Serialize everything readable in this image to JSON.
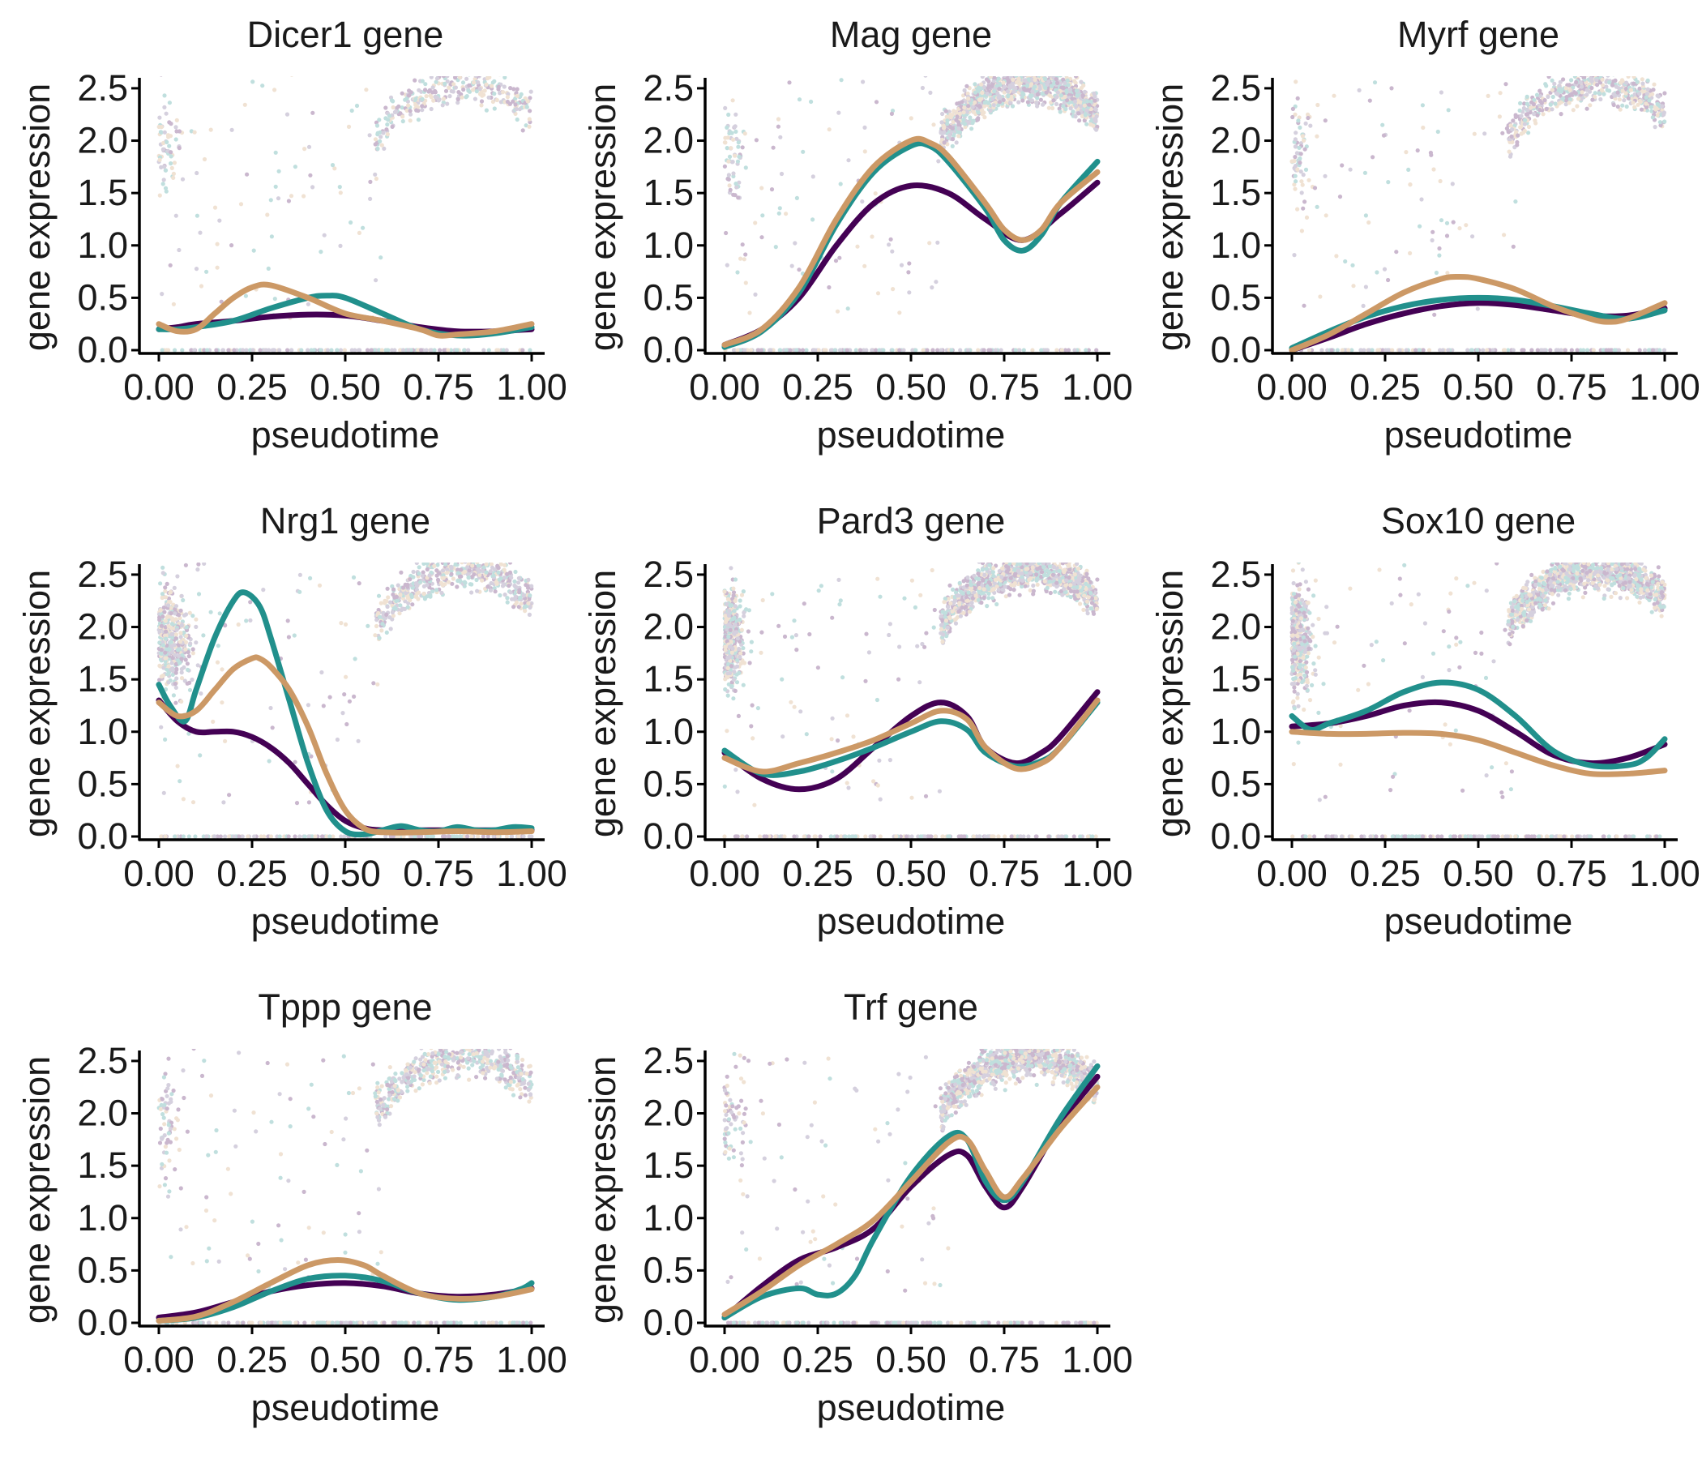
{
  "chart_data": {
    "type": "line",
    "colors": {
      "series": [
        "#440154",
        "#21908C",
        "#CC9966"
      ],
      "points": [
        "#440154",
        "#21908C",
        "#CC9966",
        "#6b5b8a"
      ]
    },
    "xlabel": "pseudotime",
    "ylabel": "gene expression",
    "xlim": [
      0,
      1
    ],
    "ylim": [
      0,
      2.6
    ],
    "xticks": [
      "0.00",
      "0.25",
      "0.50",
      "0.75",
      "1.00"
    ],
    "yticks": [
      "0.0",
      "0.5",
      "1.0",
      "1.5",
      "2.0",
      "2.5"
    ],
    "grid": false,
    "legend": "none",
    "panels": [
      {
        "title": "Dicer1 gene",
        "points_shape": "early",
        "series": [
          {
            "color": "#440154",
            "x": [
              0,
              0.05,
              0.1,
              0.2,
              0.3,
              0.4,
              0.5,
              0.6,
              0.7,
              0.8,
              0.9,
              1.0
            ],
            "y": [
              0.2,
              0.22,
              0.25,
              0.28,
              0.32,
              0.34,
              0.33,
              0.28,
              0.22,
              0.18,
              0.18,
              0.2
            ]
          },
          {
            "color": "#21908C",
            "x": [
              0,
              0.05,
              0.1,
              0.2,
              0.3,
              0.4,
              0.45,
              0.5,
              0.6,
              0.7,
              0.8,
              0.9,
              1.0
            ],
            "y": [
              0.2,
              0.2,
              0.22,
              0.28,
              0.4,
              0.5,
              0.52,
              0.5,
              0.35,
              0.2,
              0.14,
              0.16,
              0.22
            ]
          },
          {
            "color": "#CC9966",
            "x": [
              0,
              0.05,
              0.1,
              0.15,
              0.2,
              0.25,
              0.3,
              0.4,
              0.5,
              0.6,
              0.7,
              0.75,
              0.8,
              0.9,
              1.0
            ],
            "y": [
              0.25,
              0.18,
              0.2,
              0.35,
              0.5,
              0.6,
              0.62,
              0.5,
              0.35,
              0.28,
              0.2,
              0.14,
              0.15,
              0.18,
              0.25
            ]
          }
        ]
      },
      {
        "title": "Mag gene",
        "points_shape": "dense",
        "series": [
          {
            "color": "#440154",
            "x": [
              0,
              0.1,
              0.2,
              0.3,
              0.4,
              0.5,
              0.6,
              0.7,
              0.8,
              0.9,
              1.0
            ],
            "y": [
              0.05,
              0.2,
              0.5,
              1.0,
              1.4,
              1.57,
              1.5,
              1.25,
              1.05,
              1.3,
              1.6
            ]
          },
          {
            "color": "#21908C",
            "x": [
              0,
              0.1,
              0.2,
              0.3,
              0.4,
              0.5,
              0.55,
              0.6,
              0.7,
              0.75,
              0.8,
              0.85,
              0.9,
              1.0
            ],
            "y": [
              0.03,
              0.18,
              0.55,
              1.2,
              1.7,
              1.95,
              1.95,
              1.8,
              1.35,
              1.05,
              0.95,
              1.1,
              1.4,
              1.8
            ]
          },
          {
            "color": "#CC9966",
            "x": [
              0,
              0.1,
              0.2,
              0.3,
              0.4,
              0.5,
              0.55,
              0.6,
              0.7,
              0.75,
              0.8,
              0.85,
              0.9,
              1.0
            ],
            "y": [
              0.05,
              0.2,
              0.6,
              1.25,
              1.75,
              2.0,
              1.98,
              1.85,
              1.4,
              1.15,
              1.05,
              1.15,
              1.4,
              1.7
            ]
          }
        ]
      },
      {
        "title": "Myrf gene",
        "points_shape": "late",
        "series": [
          {
            "color": "#440154",
            "x": [
              0,
              0.1,
              0.2,
              0.3,
              0.4,
              0.5,
              0.6,
              0.7,
              0.8,
              0.9,
              1.0
            ],
            "y": [
              0,
              0.12,
              0.25,
              0.35,
              0.42,
              0.45,
              0.43,
              0.38,
              0.33,
              0.33,
              0.4
            ]
          },
          {
            "color": "#21908C",
            "x": [
              0,
              0.1,
              0.2,
              0.3,
              0.4,
              0.5,
              0.6,
              0.7,
              0.8,
              0.9,
              1.0
            ],
            "y": [
              0.02,
              0.18,
              0.32,
              0.42,
              0.48,
              0.5,
              0.48,
              0.42,
              0.35,
              0.3,
              0.38
            ]
          },
          {
            "color": "#CC9966",
            "x": [
              0,
              0.1,
              0.2,
              0.3,
              0.4,
              0.45,
              0.5,
              0.6,
              0.7,
              0.8,
              0.85,
              0.9,
              1.0
            ],
            "y": [
              0,
              0.15,
              0.35,
              0.55,
              0.68,
              0.7,
              0.68,
              0.58,
              0.42,
              0.3,
              0.27,
              0.3,
              0.45
            ]
          }
        ]
      },
      {
        "title": "Nrg1 gene",
        "points_shape": "both",
        "series": [
          {
            "color": "#440154",
            "x": [
              0,
              0.05,
              0.1,
              0.15,
              0.2,
              0.25,
              0.3,
              0.35,
              0.4,
              0.45,
              0.5,
              0.55,
              0.6,
              0.7,
              0.8,
              0.9,
              1.0
            ],
            "y": [
              1.3,
              1.1,
              1.0,
              1.0,
              1.0,
              0.95,
              0.85,
              0.7,
              0.5,
              0.3,
              0.15,
              0.08,
              0.06,
              0.06,
              0.06,
              0.06,
              0.06
            ]
          },
          {
            "color": "#21908C",
            "x": [
              0,
              0.03,
              0.07,
              0.1,
              0.15,
              0.2,
              0.23,
              0.27,
              0.3,
              0.35,
              0.4,
              0.45,
              0.5,
              0.55,
              0.6,
              0.65,
              0.7,
              0.75,
              0.8,
              0.85,
              0.9,
              0.95,
              1.0
            ],
            "y": [
              1.45,
              1.25,
              1.1,
              1.4,
              1.9,
              2.25,
              2.33,
              2.2,
              1.9,
              1.3,
              0.7,
              0.25,
              0.05,
              0.02,
              0.06,
              0.1,
              0.06,
              0.05,
              0.09,
              0.06,
              0.06,
              0.09,
              0.08
            ]
          },
          {
            "color": "#CC9966",
            "x": [
              0,
              0.05,
              0.1,
              0.15,
              0.2,
              0.25,
              0.27,
              0.3,
              0.35,
              0.4,
              0.45,
              0.5,
              0.55,
              0.6,
              0.7,
              0.8,
              0.9,
              1.0
            ],
            "y": [
              1.28,
              1.15,
              1.2,
              1.4,
              1.6,
              1.7,
              1.7,
              1.62,
              1.4,
              1.05,
              0.6,
              0.25,
              0.08,
              0.04,
              0.04,
              0.05,
              0.04,
              0.05
            ]
          }
        ]
      },
      {
        "title": "Pard3 gene",
        "points_shape": "both-dense",
        "series": [
          {
            "color": "#440154",
            "x": [
              0,
              0.1,
              0.2,
              0.3,
              0.4,
              0.5,
              0.58,
              0.65,
              0.7,
              0.78,
              0.85,
              0.9,
              1.0
            ],
            "y": [
              0.8,
              0.55,
              0.45,
              0.55,
              0.85,
              1.15,
              1.28,
              1.15,
              0.85,
              0.7,
              0.8,
              0.95,
              1.38
            ]
          },
          {
            "color": "#21908C",
            "x": [
              0,
              0.1,
              0.2,
              0.3,
              0.4,
              0.5,
              0.58,
              0.65,
              0.7,
              0.78,
              0.85,
              0.9,
              1.0
            ],
            "y": [
              0.82,
              0.6,
              0.62,
              0.72,
              0.85,
              1.0,
              1.1,
              1.02,
              0.8,
              0.67,
              0.72,
              0.85,
              1.28
            ]
          },
          {
            "color": "#CC9966",
            "x": [
              0,
              0.1,
              0.2,
              0.3,
              0.4,
              0.5,
              0.58,
              0.65,
              0.7,
              0.78,
              0.85,
              0.9,
              1.0
            ],
            "y": [
              0.75,
              0.62,
              0.7,
              0.8,
              0.92,
              1.08,
              1.2,
              1.12,
              0.85,
              0.65,
              0.7,
              0.85,
              1.3
            ]
          }
        ]
      },
      {
        "title": "Sox10 gene",
        "points_shape": "both-dense",
        "series": [
          {
            "color": "#440154",
            "x": [
              0,
              0.1,
              0.2,
              0.3,
              0.4,
              0.5,
              0.6,
              0.7,
              0.8,
              0.9,
              1.0
            ],
            "y": [
              1.05,
              1.08,
              1.15,
              1.25,
              1.28,
              1.2,
              1.0,
              0.78,
              0.7,
              0.75,
              0.88
            ]
          },
          {
            "color": "#21908C",
            "x": [
              0,
              0.05,
              0.1,
              0.2,
              0.3,
              0.4,
              0.5,
              0.6,
              0.7,
              0.8,
              0.9,
              0.95,
              1.0
            ],
            "y": [
              1.15,
              1.02,
              1.08,
              1.2,
              1.38,
              1.47,
              1.4,
              1.15,
              0.82,
              0.68,
              0.68,
              0.75,
              0.93
            ]
          },
          {
            "color": "#CC9966",
            "x": [
              0,
              0.1,
              0.2,
              0.3,
              0.4,
              0.5,
              0.6,
              0.7,
              0.8,
              0.9,
              1.0
            ],
            "y": [
              1.0,
              0.98,
              0.98,
              0.99,
              0.98,
              0.92,
              0.8,
              0.68,
              0.6,
              0.6,
              0.63
            ]
          }
        ]
      },
      {
        "title": "Tppp gene",
        "points_shape": "late",
        "series": [
          {
            "color": "#440154",
            "x": [
              0,
              0.1,
              0.2,
              0.3,
              0.4,
              0.5,
              0.6,
              0.7,
              0.8,
              0.9,
              1.0
            ],
            "y": [
              0.05,
              0.1,
              0.2,
              0.3,
              0.36,
              0.38,
              0.35,
              0.28,
              0.25,
              0.27,
              0.33
            ]
          },
          {
            "color": "#21908C",
            "x": [
              0,
              0.1,
              0.2,
              0.3,
              0.4,
              0.5,
              0.6,
              0.7,
              0.8,
              0.9,
              0.97,
              1.0
            ],
            "y": [
              0.02,
              0.05,
              0.15,
              0.3,
              0.42,
              0.45,
              0.4,
              0.28,
              0.22,
              0.25,
              0.32,
              0.38
            ]
          },
          {
            "color": "#CC9966",
            "x": [
              0,
              0.1,
              0.2,
              0.3,
              0.4,
              0.48,
              0.55,
              0.6,
              0.7,
              0.8,
              0.9,
              1.0
            ],
            "y": [
              0.02,
              0.06,
              0.2,
              0.38,
              0.55,
              0.6,
              0.55,
              0.45,
              0.28,
              0.23,
              0.25,
              0.32
            ]
          }
        ]
      },
      {
        "title": "Trf gene",
        "points_shape": "dense",
        "series": [
          {
            "color": "#440154",
            "x": [
              0,
              0.1,
              0.2,
              0.3,
              0.4,
              0.5,
              0.6,
              0.65,
              0.7,
              0.75,
              0.8,
              0.9,
              1.0
            ],
            "y": [
              0.05,
              0.35,
              0.6,
              0.72,
              0.9,
              1.3,
              1.6,
              1.6,
              1.3,
              1.1,
              1.3,
              1.9,
              2.35
            ]
          },
          {
            "color": "#21908C",
            "x": [
              0,
              0.1,
              0.2,
              0.25,
              0.3,
              0.35,
              0.4,
              0.5,
              0.6,
              0.65,
              0.7,
              0.75,
              0.8,
              0.9,
              1.0
            ],
            "y": [
              0.05,
              0.25,
              0.33,
              0.27,
              0.28,
              0.45,
              0.8,
              1.4,
              1.78,
              1.75,
              1.35,
              1.17,
              1.35,
              1.95,
              2.45
            ]
          },
          {
            "color": "#CC9966",
            "x": [
              0,
              0.1,
              0.2,
              0.3,
              0.4,
              0.5,
              0.6,
              0.65,
              0.7,
              0.75,
              0.8,
              0.9,
              1.0
            ],
            "y": [
              0.08,
              0.3,
              0.55,
              0.75,
              0.98,
              1.35,
              1.72,
              1.75,
              1.45,
              1.2,
              1.38,
              1.85,
              2.25
            ]
          }
        ]
      }
    ]
  }
}
